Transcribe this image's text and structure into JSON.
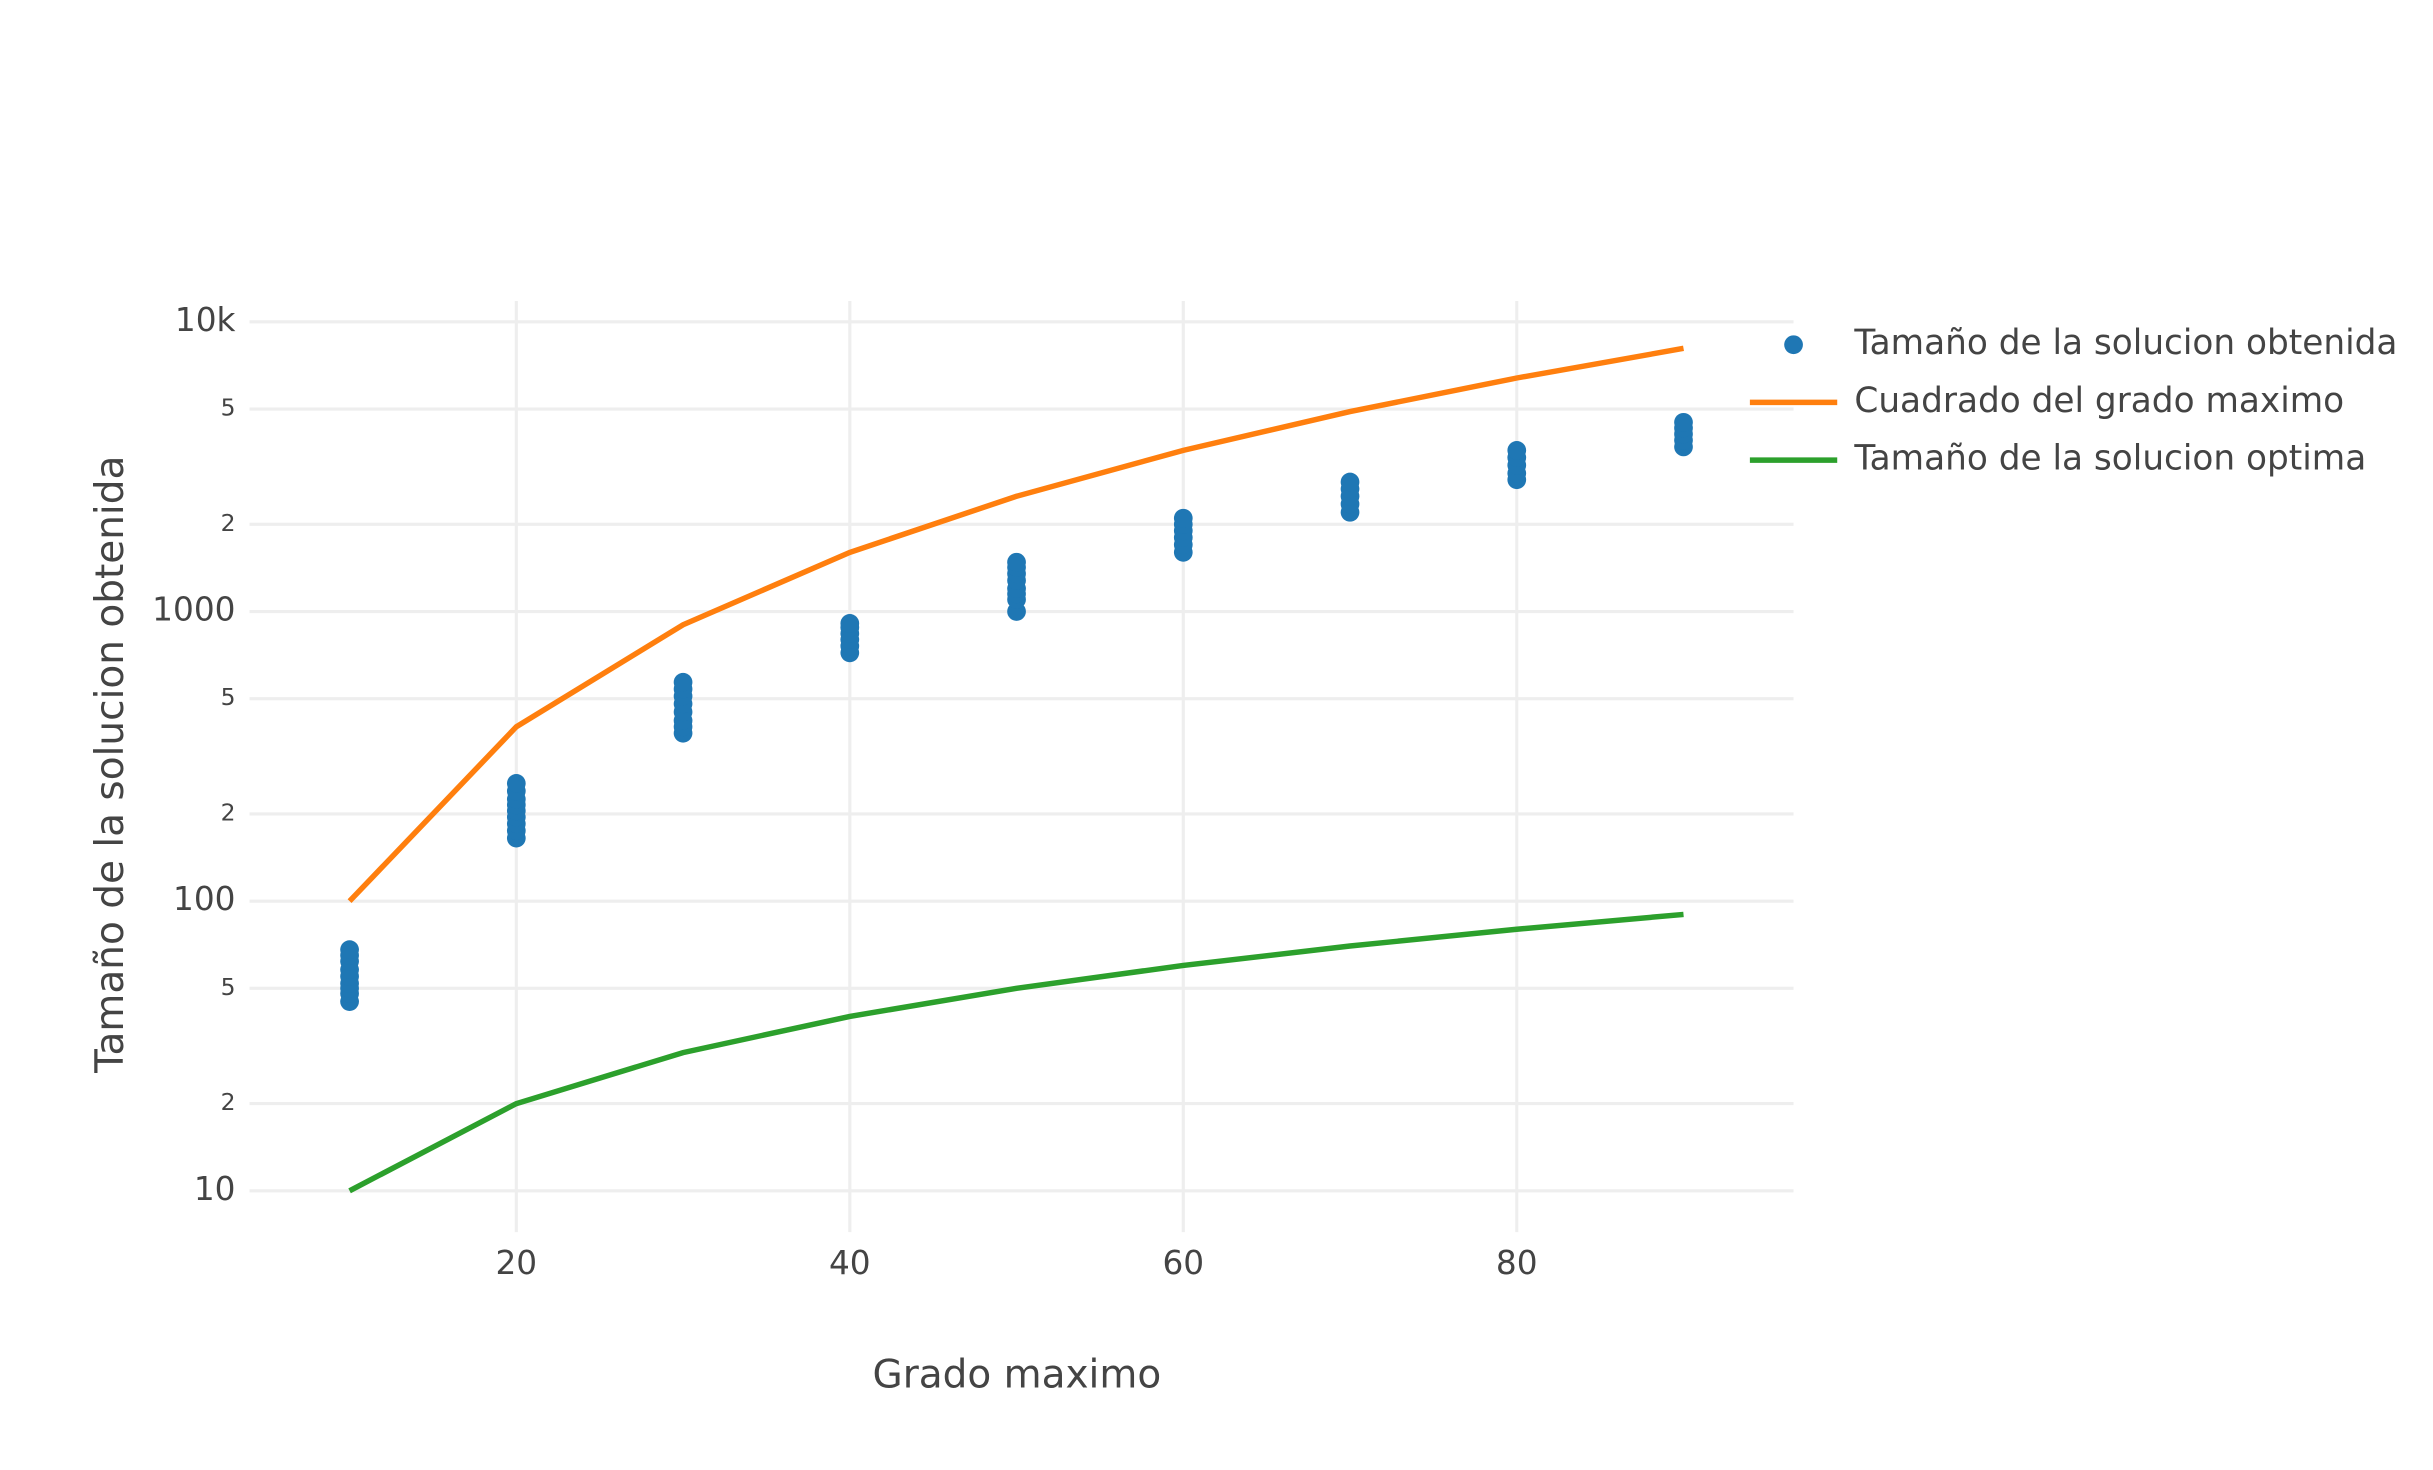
{
  "chart_data": {
    "type": "line",
    "x_label": "Grado maximo",
    "y_label": "Tamaño de la solucion obtenida",
    "log_y": true,
    "grid": true,
    "legend": "right",
    "xlim": [
      4,
      96.6
    ],
    "ylim": [
      7.2,
      11800
    ],
    "xticks": [
      20,
      40,
      60,
      80
    ],
    "yticks": [
      10,
      {
        "value": 20,
        "label": "2"
      },
      {
        "value": 50,
        "label": "5"
      },
      100,
      {
        "value": 200,
        "label": "2"
      },
      {
        "value": 500,
        "label": "5"
      },
      1000,
      {
        "value": 2000,
        "label": "2"
      },
      {
        "value": 5000,
        "label": "5"
      },
      {
        "value": 10000,
        "label": "10k"
      }
    ],
    "series": [
      {
        "name": "Tamaño de la solucion obtenida",
        "color": "#1f77b4",
        "mode": "markers",
        "x": [
          10,
          10,
          10,
          10,
          10,
          10,
          10,
          10,
          10,
          20,
          20,
          20,
          20,
          20,
          20,
          20,
          20,
          20,
          30,
          30,
          30,
          30,
          30,
          30,
          30,
          30,
          40,
          40,
          40,
          40,
          40,
          40,
          50,
          50,
          50,
          50,
          50,
          50,
          50,
          50,
          60,
          60,
          60,
          60,
          60,
          60,
          70,
          70,
          70,
          70,
          70,
          80,
          80,
          80,
          80,
          80,
          90,
          90,
          90,
          90,
          90
        ],
        "values": [
          45,
          48,
          50,
          52,
          55,
          58,
          62,
          65,
          68,
          165,
          175,
          185,
          195,
          205,
          215,
          225,
          240,
          255,
          380,
          400,
          420,
          450,
          480,
          510,
          540,
          570,
          720,
          760,
          800,
          840,
          880,
          910,
          1000,
          1100,
          1150,
          1200,
          1280,
          1350,
          1420,
          1480,
          1600,
          1700,
          1800,
          1900,
          2000,
          2100,
          2200,
          2350,
          2500,
          2650,
          2800,
          2850,
          3000,
          3200,
          3400,
          3600,
          3700,
          3900,
          4100,
          4300,
          4500
        ]
      },
      {
        "name": "Cuadrado del grado maximo",
        "color": "#ff7f0e",
        "mode": "lines",
        "x": [
          10,
          20,
          30,
          40,
          50,
          60,
          70,
          80,
          90
        ],
        "values": [
          100,
          400,
          900,
          1600,
          2500,
          3600,
          4900,
          6400,
          8100
        ]
      },
      {
        "name": "Tamaño de la solucion optima",
        "color": "#2ca02c",
        "mode": "lines",
        "x": [
          10,
          20,
          30,
          40,
          50,
          60,
          70,
          80,
          90
        ],
        "values": [
          10,
          20,
          30,
          40,
          50,
          60,
          70,
          80,
          90
        ]
      }
    ]
  }
}
